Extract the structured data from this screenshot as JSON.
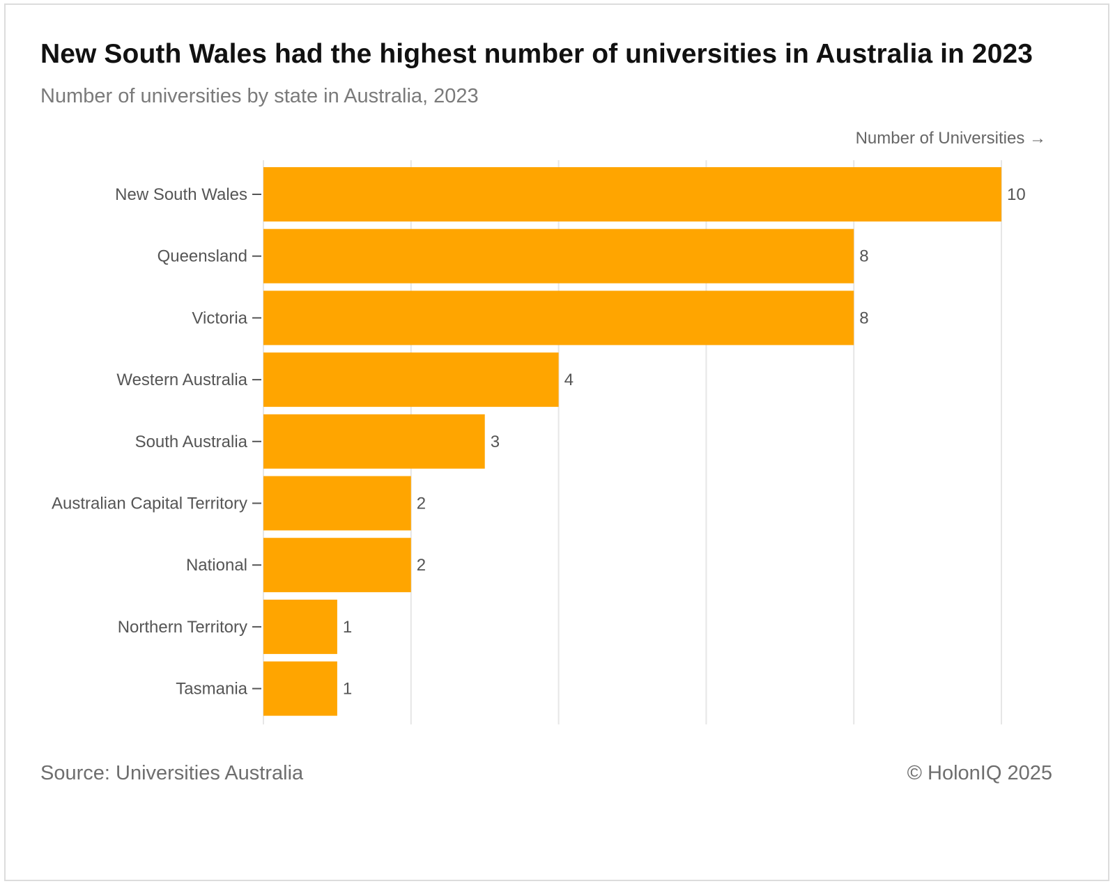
{
  "title": "New South Wales had the highest number of universities in Australia in 2023",
  "subtitle": "Number of universities by state in Australia, 2023",
  "source": "Source: Universities Australia",
  "copyright": "© HolonIQ 2025",
  "colors": {
    "bar": "#ffa500",
    "grid": "#e6e6e6",
    "axis": "#555555"
  },
  "chart_data": {
    "type": "bar",
    "orientation": "horizontal",
    "title": "New South Wales had the highest number of universities in Australia in 2023",
    "subtitle": "Number of universities by state in Australia, 2023",
    "xlabel": "Number of Universities →",
    "ylabel": "",
    "xlim": [
      0,
      10
    ],
    "grid": true,
    "categories": [
      "New South Wales",
      "Queensland",
      "Victoria",
      "Western Australia",
      "South Australia",
      "Australian Capital Territory",
      "National",
      "Northern Territory",
      "Tasmania"
    ],
    "values": [
      10,
      8,
      8,
      4,
      3,
      2,
      2,
      1,
      1
    ],
    "data_labels": [
      "10",
      "8",
      "8",
      "4",
      "3",
      "2",
      "2",
      "1",
      "1"
    ]
  }
}
